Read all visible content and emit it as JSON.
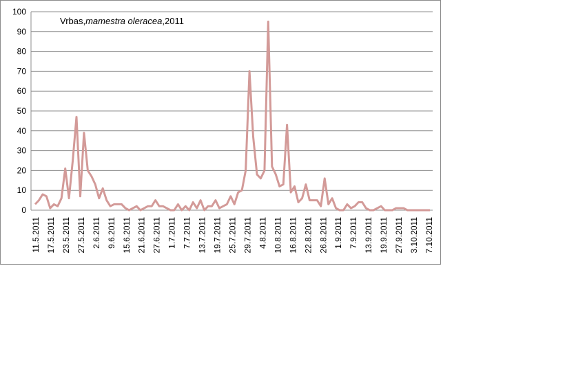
{
  "chart_data": {
    "type": "line",
    "title_parts": [
      "Vrbas,",
      "mamestra oleracea",
      ",2011"
    ],
    "xlabel": "",
    "ylabel": "",
    "ylim": [
      0,
      100
    ],
    "yticks": [
      0,
      10,
      20,
      30,
      40,
      50,
      60,
      70,
      80,
      90,
      100
    ],
    "grid": true,
    "legend": "none",
    "line_color": "#d39a98",
    "grid_color": "#8c8c8c",
    "x_tick_labels": [
      "11.5.2011",
      "17.5.2011",
      "23.5.2011",
      "27.5.2011",
      "2.6.2011",
      "9.6.2011",
      "15.6.2011",
      "21.6.2011",
      "27.6.2011",
      "1.7.2011",
      "7.7.2011",
      "13.7.2011",
      "19.7.2011",
      "25.7.2011",
      "29.7.2011",
      "4.8.2011",
      "10.8.2011",
      "16.8.2011",
      "22.8.2011",
      "26.8.2011",
      "1.9.2011",
      "7.9.2011",
      "13.9.2011",
      "19.9.2011",
      "27.9.2011",
      "3.10.2011",
      "7.10.2011"
    ],
    "series": [
      {
        "values": [
          3,
          5,
          8,
          7,
          1,
          3,
          2,
          6,
          21,
          6,
          25,
          47,
          7,
          39,
          20,
          17,
          13,
          6,
          11,
          5,
          2,
          3,
          3,
          3,
          1,
          0,
          1,
          2,
          0,
          1,
          2,
          2,
          5,
          2,
          2,
          1,
          0,
          0,
          3,
          0,
          2,
          0,
          4,
          1,
          5,
          0,
          2,
          2,
          5,
          1,
          2,
          3,
          7,
          3,
          9,
          10,
          20,
          70,
          37,
          18,
          16,
          20,
          95,
          22,
          18,
          12,
          13,
          43,
          9,
          12,
          4,
          6,
          13,
          5,
          5,
          5,
          2,
          16,
          3,
          6,
          1,
          0,
          0,
          3,
          1,
          2,
          4,
          4,
          1,
          0,
          0,
          1,
          2,
          0,
          0,
          0,
          1,
          1,
          1,
          0,
          0,
          0,
          0,
          0,
          0,
          0
        ]
      }
    ]
  }
}
